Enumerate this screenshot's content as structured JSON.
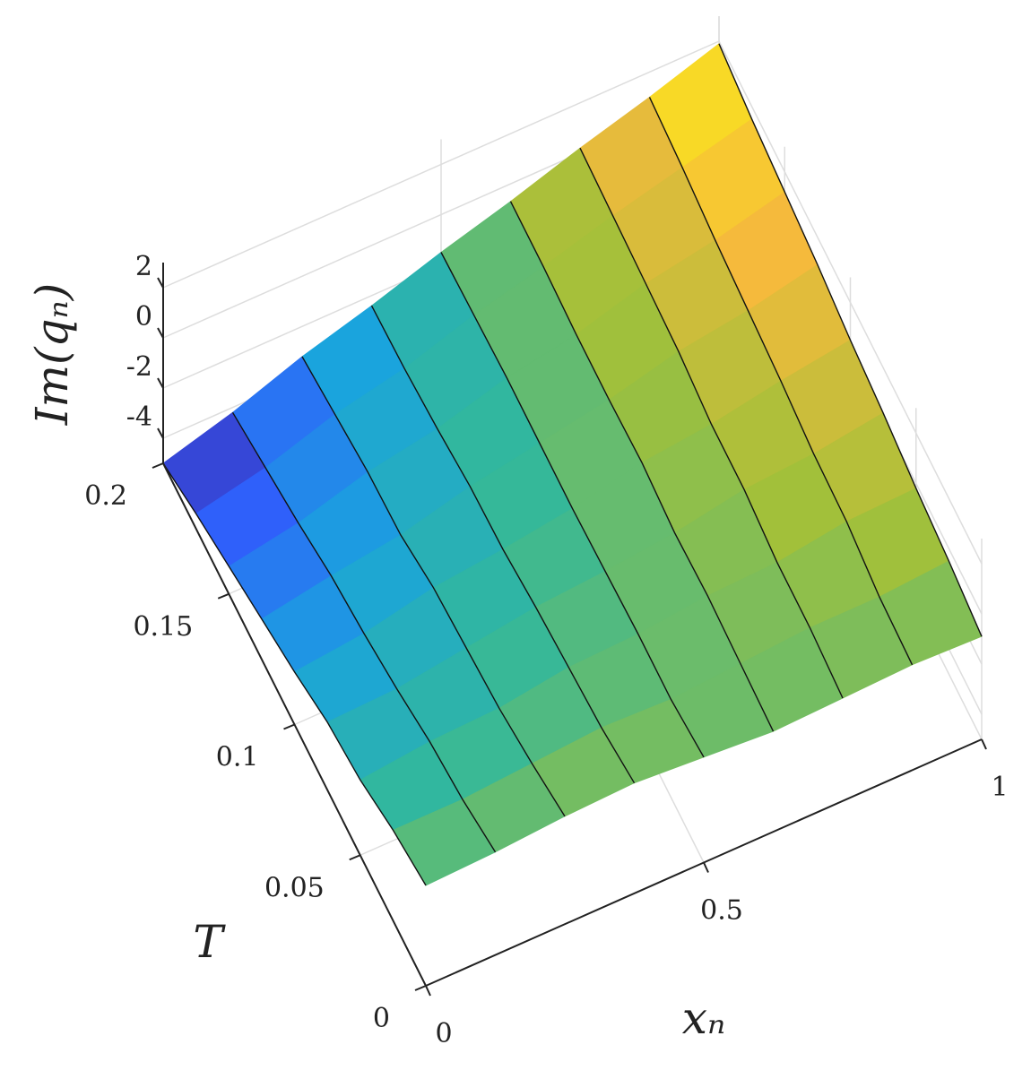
{
  "chart_data": {
    "type": "surface",
    "xlabel": "xₙ",
    "ylabel": "T",
    "zlabel": "Im(qₙ)",
    "x": [
      0,
      0.125,
      0.25,
      0.375,
      0.5,
      0.625,
      0.75,
      0.875,
      1
    ],
    "y": [
      0,
      0.025,
      0.05,
      0.075,
      0.1,
      0.125,
      0.15,
      0.175,
      0.2
    ],
    "z": [
      [
        -1.0,
        -0.9,
        -0.7,
        -0.6,
        -0.8,
        -1.0,
        -0.9,
        -0.8,
        -0.9
      ],
      [
        -1.4,
        -1.4,
        -1.2,
        -1.0,
        -1.1,
        -0.9,
        -0.7,
        -0.7,
        -0.5
      ],
      [
        -2.0,
        -1.7,
        -1.6,
        -1.2,
        -1.1,
        -0.8,
        -0.7,
        -0.3,
        -0.2
      ],
      [
        -2.3,
        -2.2,
        -1.8,
        -1.4,
        -1.2,
        -0.9,
        -0.4,
        -0.2,
        0.2
      ],
      [
        -2.9,
        -2.6,
        -2.0,
        -1.7,
        -1.3,
        -0.7,
        -0.4,
        0.1,
        0.5
      ],
      [
        -3.4,
        -2.9,
        -2.5,
        -1.8,
        -1.3,
        -0.8,
        -0.1,
        0.3,
        0.9
      ],
      [
        -3.9,
        -3.4,
        -2.6,
        -2.1,
        -1.3,
        -0.8,
        0.0,
        0.5,
        1.2
      ],
      [
        -4.4,
        -3.8,
        -2.9,
        -2.3,
        -1.4,
        -0.7,
        0.1,
        0.8,
        1.5
      ],
      [
        -5.0,
        -4.2,
        -3.2,
        -2.4,
        -1.5,
        -0.7,
        0.2,
        1.0,
        1.9
      ]
    ],
    "xlim": [
      0,
      1
    ],
    "ylim": [
      0,
      0.2
    ],
    "zlim": [
      -5,
      3
    ],
    "xticks": [
      0,
      0.5,
      1
    ],
    "yticks": [
      0,
      0.05,
      0.1,
      0.15,
      0.2
    ],
    "zticks": [
      -4,
      -2,
      0,
      2
    ],
    "grid": true,
    "colormap": [
      "#3e26a8",
      "#2f61fc",
      "#1aa4dd",
      "#33b89b",
      "#a2c03a",
      "#f7ba3c",
      "#f9fb0e"
    ]
  }
}
